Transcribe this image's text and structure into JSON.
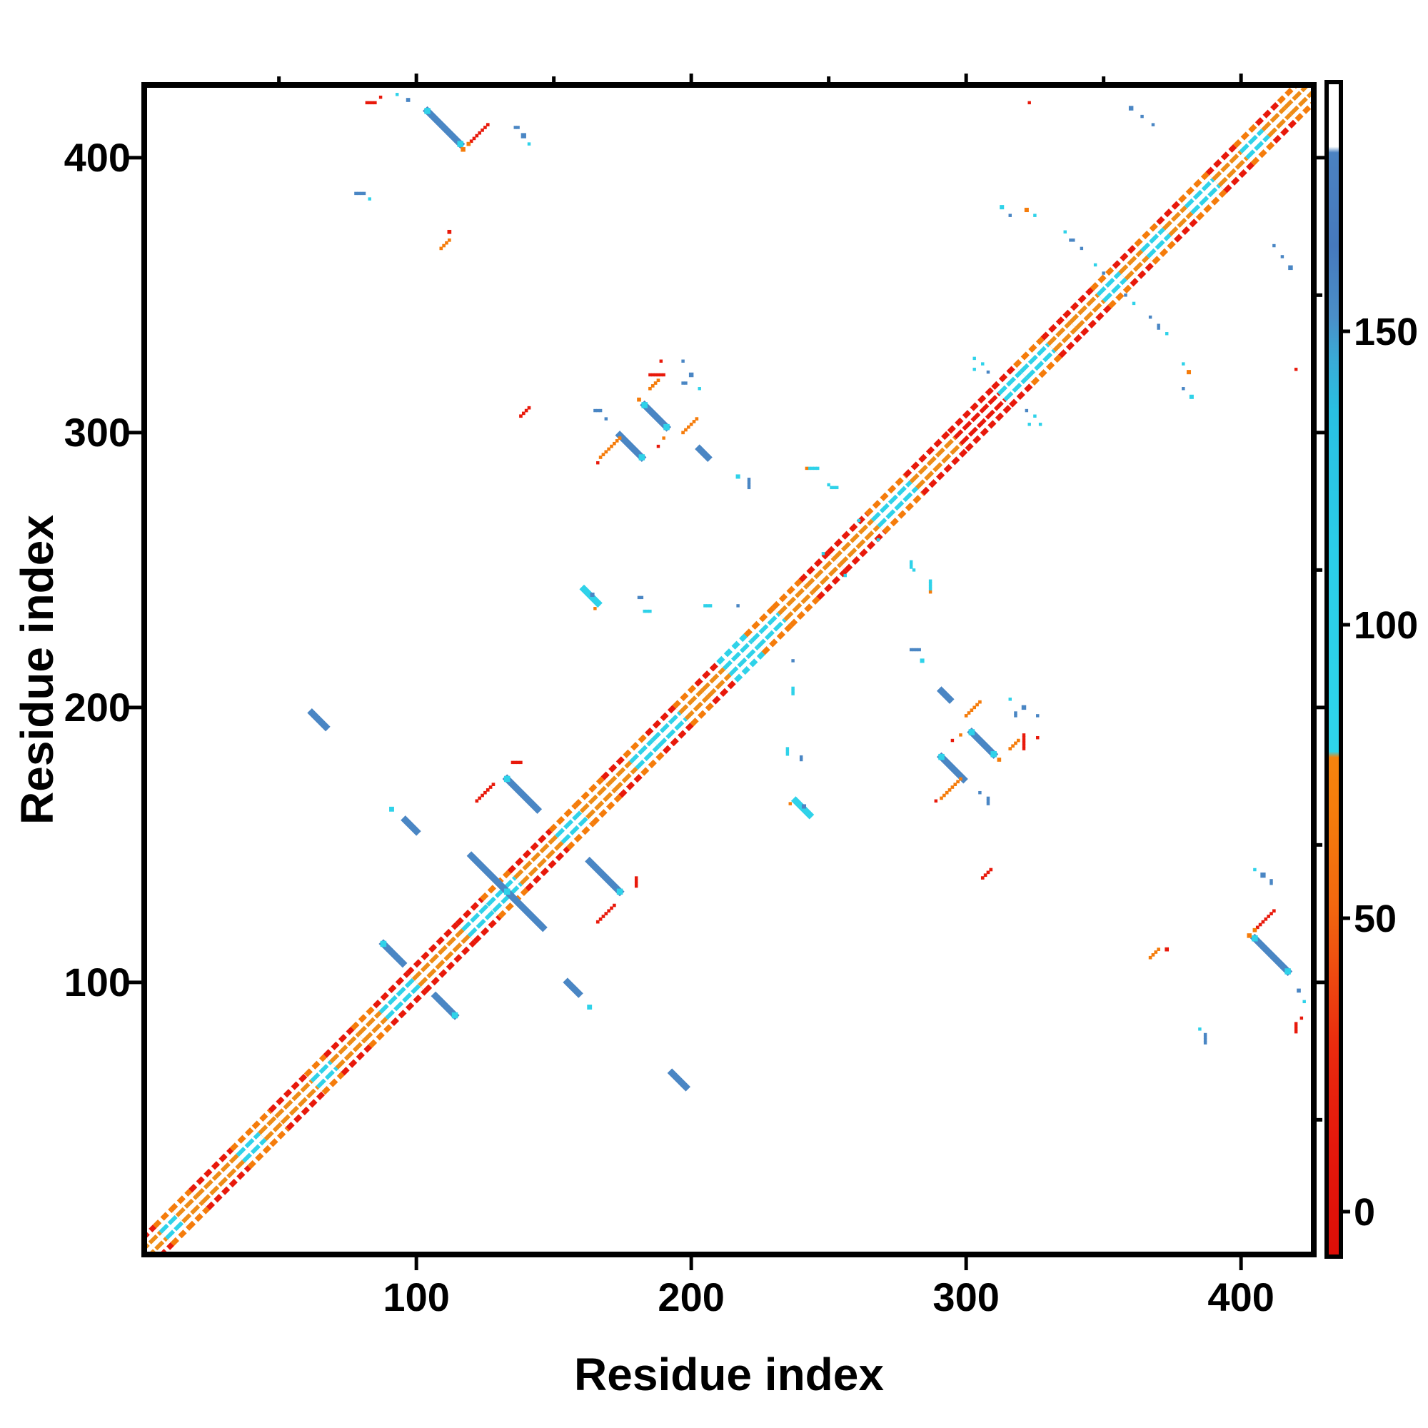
{
  "figure": {
    "background": "#ffffff",
    "frame_color": "#000000"
  },
  "axes": {
    "x": {
      "label": "Residue index",
      "major_ticks": [
        100,
        200,
        300,
        400
      ],
      "minor_ticks": [
        50,
        150,
        250,
        350
      ],
      "range": [
        1,
        427
      ]
    },
    "y": {
      "label": "Residue index",
      "major_ticks": [
        100,
        200,
        300,
        400
      ],
      "minor_ticks": [
        50,
        150,
        250,
        350
      ],
      "range": [
        1,
        427
      ]
    }
  },
  "colorbar": {
    "tick_values": [
      0,
      50,
      100,
      150
    ],
    "tick_labels": [
      "0",
      "50",
      "100",
      "150"
    ],
    "value_range": [
      -7,
      192
    ],
    "stops": [
      {
        "o": 0.0,
        "c": "#dd0e07"
      },
      {
        "o": 0.1,
        "c": "#e5190c"
      },
      {
        "o": 0.18,
        "c": "#ea2b0e"
      },
      {
        "o": 0.24,
        "c": "#ee4a10"
      },
      {
        "o": 0.3,
        "c": "#f2680f"
      },
      {
        "o": 0.38,
        "c": "#f57d0c"
      },
      {
        "o": 0.425,
        "c": "#f5830d"
      },
      {
        "o": 0.43,
        "c": "#2ed5ea"
      },
      {
        "o": 0.6,
        "c": "#2bcde8"
      },
      {
        "o": 0.72,
        "c": "#29c0e2"
      },
      {
        "o": 0.765,
        "c": "#3aaad6"
      },
      {
        "o": 0.8,
        "c": "#4a8fc8"
      },
      {
        "o": 0.86,
        "c": "#4679bd"
      },
      {
        "o": 0.94,
        "c": "#4b82c1"
      },
      {
        "o": 0.945,
        "c": "#ffffff"
      },
      {
        "o": 1.0,
        "c": "#ffffff"
      }
    ]
  },
  "palette": {
    "red": "#e8190b",
    "orange": "#f57c0b",
    "inner_orange": "#ee8c17",
    "cyan": "#2fd2e9",
    "steel": "#4a86c4",
    "white": "#ffffff"
  },
  "chart_data": {
    "type": "heatmap",
    "title": "",
    "xlabel": "Residue index",
    "ylabel": "Residue index",
    "x_range": [
      1,
      427
    ],
    "y_range": [
      1,
      427
    ],
    "colorbar_range": [
      0,
      192
    ],
    "colorbar_ticks": [
      0,
      50,
      100,
      150
    ],
    "symmetric": true,
    "diagonal_runs": [
      [
        1,
        8,
        "orange",
        "red"
      ],
      [
        8,
        14,
        "cyan",
        "orange"
      ],
      [
        14,
        21,
        "orange",
        "orange"
      ],
      [
        21,
        36,
        "orange",
        "red"
      ],
      [
        36,
        44,
        "cyan",
        "orange"
      ],
      [
        44,
        50,
        "orange",
        "orange"
      ],
      [
        50,
        63,
        "orange",
        "red"
      ],
      [
        63,
        70,
        "cyan",
        "orange"
      ],
      [
        70,
        80,
        "orange",
        "red"
      ],
      [
        80,
        88,
        "orange",
        "orange"
      ],
      [
        88,
        100,
        "cyan",
        "red"
      ],
      [
        100,
        118,
        "orange",
        "red"
      ],
      [
        118,
        127,
        "cyan",
        "red"
      ],
      [
        127,
        137,
        "cyan",
        "orange"
      ],
      [
        137,
        152,
        "orange",
        "red"
      ],
      [
        152,
        161,
        "cyan",
        "orange"
      ],
      [
        161,
        171,
        "orange",
        "orange"
      ],
      [
        171,
        179,
        "orange",
        "red"
      ],
      [
        179,
        187,
        "cyan",
        "orange"
      ],
      [
        187,
        197,
        "cyan",
        "red"
      ],
      [
        197,
        205,
        "orange",
        "orange"
      ],
      [
        205,
        213,
        "orange",
        "red"
      ],
      [
        213,
        223,
        "cyan",
        "cyan"
      ],
      [
        223,
        233,
        "cyan",
        "orange"
      ],
      [
        233,
        243,
        "orange",
        "orange"
      ],
      [
        243,
        253,
        "orange",
        "red"
      ],
      [
        253,
        267,
        "orange",
        "red"
      ],
      [
        267,
        281,
        "cyan",
        "orange"
      ],
      [
        281,
        297,
        "orange",
        "red"
      ],
      [
        297,
        313,
        "red",
        "red"
      ],
      [
        313,
        321,
        "cyan",
        "red"
      ],
      [
        321,
        331,
        "cyan",
        "orange"
      ],
      [
        331,
        339,
        "orange",
        "red"
      ],
      [
        339,
        349,
        "orange",
        "red"
      ],
      [
        349,
        357,
        "cyan",
        "orange"
      ],
      [
        357,
        365,
        "orange",
        "red"
      ],
      [
        365,
        373,
        "cyan",
        "orange"
      ],
      [
        373,
        381,
        "orange",
        "red"
      ],
      [
        381,
        391,
        "cyan",
        "orange"
      ],
      [
        391,
        401,
        "orange",
        "red"
      ],
      [
        401,
        409,
        "cyan",
        "orange"
      ],
      [
        409,
        417,
        "orange",
        "red"
      ],
      [
        417,
        427,
        "orange",
        "orange"
      ]
    ],
    "features": [
      {
        "t": "beta",
        "i": 104,
        "j": 417,
        "len": 13,
        "c": "steel",
        "cap": "both"
      },
      {
        "t": "dot",
        "i": 117,
        "j": 403,
        "c": "orange",
        "s": 1.6
      },
      {
        "t": "stair",
        "i": 119,
        "j": 405,
        "len": 8,
        "c": "red"
      },
      {
        "t": "dot",
        "i": 119,
        "j": 405,
        "c": "orange",
        "s": 1.4
      },
      {
        "t": "dash",
        "i": 82,
        "j": 420,
        "len": 4,
        "c": "red"
      },
      {
        "t": "dot",
        "i": 87,
        "j": 422,
        "c": "red"
      },
      {
        "t": "dot",
        "i": 93,
        "j": 423,
        "c": "cyan"
      },
      {
        "t": "dot",
        "i": 97,
        "j": 421,
        "c": "steel",
        "s": 1.4
      },
      {
        "t": "dash",
        "i": 136,
        "j": 411,
        "len": 2,
        "c": "steel"
      },
      {
        "t": "dot",
        "i": 139,
        "j": 408,
        "c": "steel",
        "s": 1.8
      },
      {
        "t": "dot",
        "i": 141,
        "j": 405,
        "c": "cyan"
      },
      {
        "t": "dash",
        "i": 78,
        "j": 387,
        "len": 4,
        "c": "steel"
      },
      {
        "t": "dot",
        "i": 83,
        "j": 385,
        "c": "cyan"
      },
      {
        "t": "dot",
        "i": 112,
        "j": 373,
        "c": "red",
        "s": 1.4
      },
      {
        "t": "stair",
        "i": 109,
        "j": 367,
        "len": 4,
        "c": "orange"
      },
      {
        "t": "dot",
        "i": 360,
        "j": 418,
        "c": "steel",
        "s": 1.6
      },
      {
        "t": "dot",
        "i": 364,
        "j": 415,
        "c": "steel"
      },
      {
        "t": "dot",
        "i": 368,
        "j": 412,
        "c": "steel"
      },
      {
        "t": "dot",
        "i": 323,
        "j": 420,
        "c": "red"
      },
      {
        "t": "dot",
        "i": 313,
        "j": 382,
        "c": "cyan",
        "s": 1.5
      },
      {
        "t": "dot",
        "i": 316,
        "j": 379,
        "c": "steel"
      },
      {
        "t": "dot",
        "i": 322,
        "j": 381,
        "c": "orange",
        "s": 1.5
      },
      {
        "t": "dot",
        "i": 325,
        "j": 379,
        "c": "cyan"
      },
      {
        "t": "beta",
        "i": 183,
        "j": 310,
        "len": 9,
        "c": "steel",
        "cap": "both"
      },
      {
        "t": "dot",
        "i": 181,
        "j": 312,
        "c": "orange",
        "s": 1.4
      },
      {
        "t": "dot",
        "i": 190,
        "j": 298,
        "c": "orange"
      },
      {
        "t": "dot",
        "i": 188,
        "j": 295,
        "c": "red"
      },
      {
        "t": "beta",
        "i": 174,
        "j": 299,
        "len": 9,
        "c": "steel",
        "cap": "end"
      },
      {
        "t": "stair",
        "i": 167,
        "j": 291,
        "len": 8,
        "c": "orange"
      },
      {
        "t": "dot",
        "i": 166,
        "j": 289,
        "c": "red"
      },
      {
        "t": "beta",
        "i": 120,
        "j": 146,
        "len": 26,
        "c": "steel",
        "cap": "mid"
      },
      {
        "t": "beta",
        "i": 88,
        "j": 114,
        "len": 8,
        "c": "steel",
        "cap": "start"
      },
      {
        "t": "beta",
        "i": 133,
        "j": 174,
        "len": 12,
        "c": "steel",
        "cap": "start"
      },
      {
        "t": "stair",
        "i": 122,
        "j": 166,
        "len": 7,
        "c": "red"
      },
      {
        "t": "dash",
        "i": 135,
        "j": 180,
        "len": 4,
        "c": "red"
      },
      {
        "t": "beta",
        "i": 62,
        "j": 198,
        "len": 6,
        "c": "steel"
      },
      {
        "t": "beta",
        "i": 96,
        "j": 159,
        "len": 5,
        "c": "steel"
      },
      {
        "t": "dot",
        "i": 91,
        "j": 163,
        "c": "cyan",
        "s": 1.7
      },
      {
        "t": "stair",
        "i": 138,
        "j": 306,
        "len": 4,
        "c": "red"
      },
      {
        "t": "dash",
        "i": 165,
        "j": 308,
        "len": 3,
        "c": "steel"
      },
      {
        "t": "dot",
        "i": 169,
        "j": 305,
        "c": "steel"
      },
      {
        "t": "beta",
        "i": 161,
        "j": 243,
        "len": 6,
        "c": "cyan"
      },
      {
        "t": "dot",
        "i": 164,
        "j": 241,
        "c": "steel",
        "s": 1.5
      },
      {
        "t": "dot",
        "i": 165,
        "j": 236,
        "c": "orange"
      },
      {
        "t": "dash",
        "i": 181,
        "j": 240,
        "len": 2,
        "c": "steel"
      },
      {
        "t": "dash",
        "i": 183,
        "j": 235,
        "len": 3,
        "c": "cyan"
      },
      {
        "t": "dash",
        "i": 205,
        "j": 237,
        "len": 3,
        "c": "cyan"
      },
      {
        "t": "dot",
        "i": 217,
        "j": 237,
        "c": "steel"
      },
      {
        "t": "dot",
        "i": 250,
        "j": 281,
        "c": "cyan"
      },
      {
        "t": "dash",
        "i": 243,
        "j": 287,
        "len": 4,
        "c": "cyan"
      },
      {
        "t": "dot",
        "i": 242,
        "j": 287,
        "c": "orange"
      },
      {
        "t": "dot",
        "i": 217,
        "j": 284,
        "c": "cyan",
        "s": 1.5
      },
      {
        "t": "vdash",
        "i": 221,
        "j": 280,
        "len": 4,
        "c": "steel"
      },
      {
        "t": "dash",
        "i": 251,
        "j": 280,
        "len": 3,
        "c": "cyan"
      },
      {
        "t": "dot",
        "i": 261,
        "j": 268,
        "c": "cyan"
      },
      {
        "t": "dot",
        "i": 248,
        "j": 256,
        "c": "cyan"
      },
      {
        "t": "beta",
        "i": 203,
        "j": 294,
        "len": 4,
        "c": "steel"
      },
      {
        "t": "stair",
        "i": 197,
        "j": 300,
        "len": 6,
        "c": "orange"
      },
      {
        "t": "dash",
        "i": 197,
        "j": 318,
        "len": 2,
        "c": "steel"
      },
      {
        "t": "dot",
        "i": 200,
        "j": 321,
        "c": "steel",
        "s": 1.6
      },
      {
        "t": "dot",
        "i": 197,
        "j": 326,
        "c": "steel"
      },
      {
        "t": "dot",
        "i": 203,
        "j": 316,
        "c": "cyan"
      },
      {
        "t": "dash",
        "i": 185,
        "j": 321,
        "len": 6,
        "c": "red"
      },
      {
        "t": "stair",
        "i": 185,
        "j": 316,
        "len": 4,
        "c": "orange"
      },
      {
        "t": "dot",
        "i": 189,
        "j": 326,
        "c": "red"
      },
      {
        "t": "dot",
        "i": 303,
        "j": 327,
        "c": "cyan"
      },
      {
        "t": "dot",
        "i": 306,
        "j": 325,
        "c": "cyan"
      },
      {
        "t": "dot",
        "i": 303,
        "j": 323,
        "c": "cyan"
      },
      {
        "t": "dot",
        "i": 308,
        "j": 322,
        "c": "steel"
      },
      {
        "t": "dash",
        "i": 338,
        "j": 370,
        "len": 2,
        "c": "steel"
      },
      {
        "t": "dot",
        "i": 342,
        "j": 367,
        "c": "steel"
      },
      {
        "t": "dot",
        "i": 336,
        "j": 373,
        "c": "cyan"
      },
      {
        "t": "dot",
        "i": 347,
        "j": 361,
        "c": "cyan"
      },
      {
        "t": "dot",
        "i": 350,
        "j": 358,
        "c": "steel"
      }
    ]
  }
}
